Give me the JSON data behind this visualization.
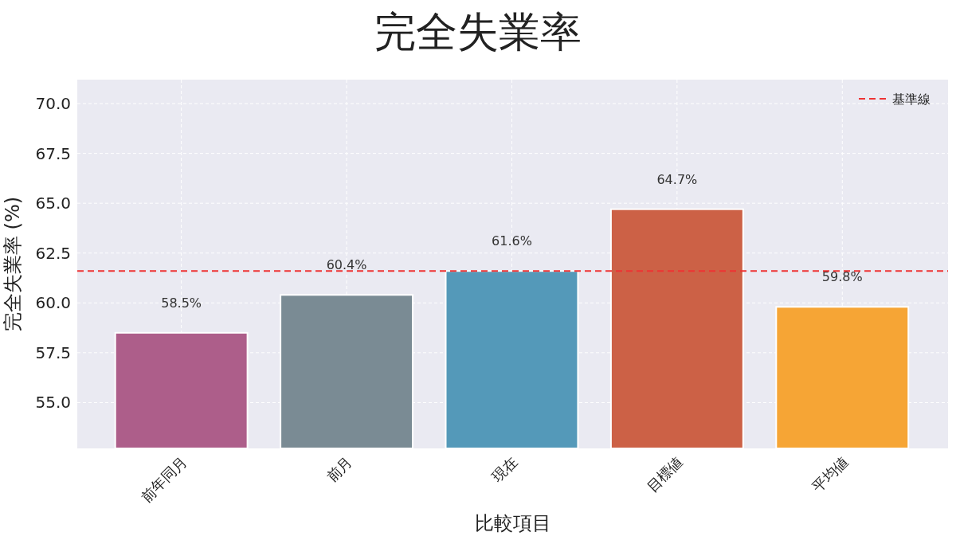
{
  "chart_data": {
    "type": "bar",
    "title": "完全失業率",
    "xlabel": "比較項目",
    "ylabel": "完全失業率 (%)",
    "categories": [
      "前年同月",
      "前月",
      "現在",
      "目標値",
      "平均値"
    ],
    "values": [
      58.5,
      60.4,
      61.6,
      64.7,
      59.8
    ],
    "colors": [
      "#ad5e8a",
      "#7a8b94",
      "#5499b9",
      "#cc6146",
      "#f6a535"
    ],
    "value_labels": [
      "58.5%",
      "60.4%",
      "61.6%",
      "64.7%",
      "59.8%"
    ],
    "ylim": [
      52.7,
      71.2
    ],
    "yticks": [
      {
        "value": 55,
        "label": "55.0"
      },
      {
        "value": 57.5,
        "label": "57.5"
      },
      {
        "value": 60,
        "label": "60.0"
      },
      {
        "value": 62.5,
        "label": "62.5"
      },
      {
        "value": 65,
        "label": "65.0"
      },
      {
        "value": 67.5,
        "label": "67.5"
      },
      {
        "value": 70,
        "label": "70.0"
      }
    ],
    "ref_lines": [
      {
        "axis": "y",
        "value": 61.6,
        "label": "基準線",
        "color": "#ee3333",
        "line_style": "dashed"
      }
    ],
    "grid": true,
    "legend": "top right"
  }
}
